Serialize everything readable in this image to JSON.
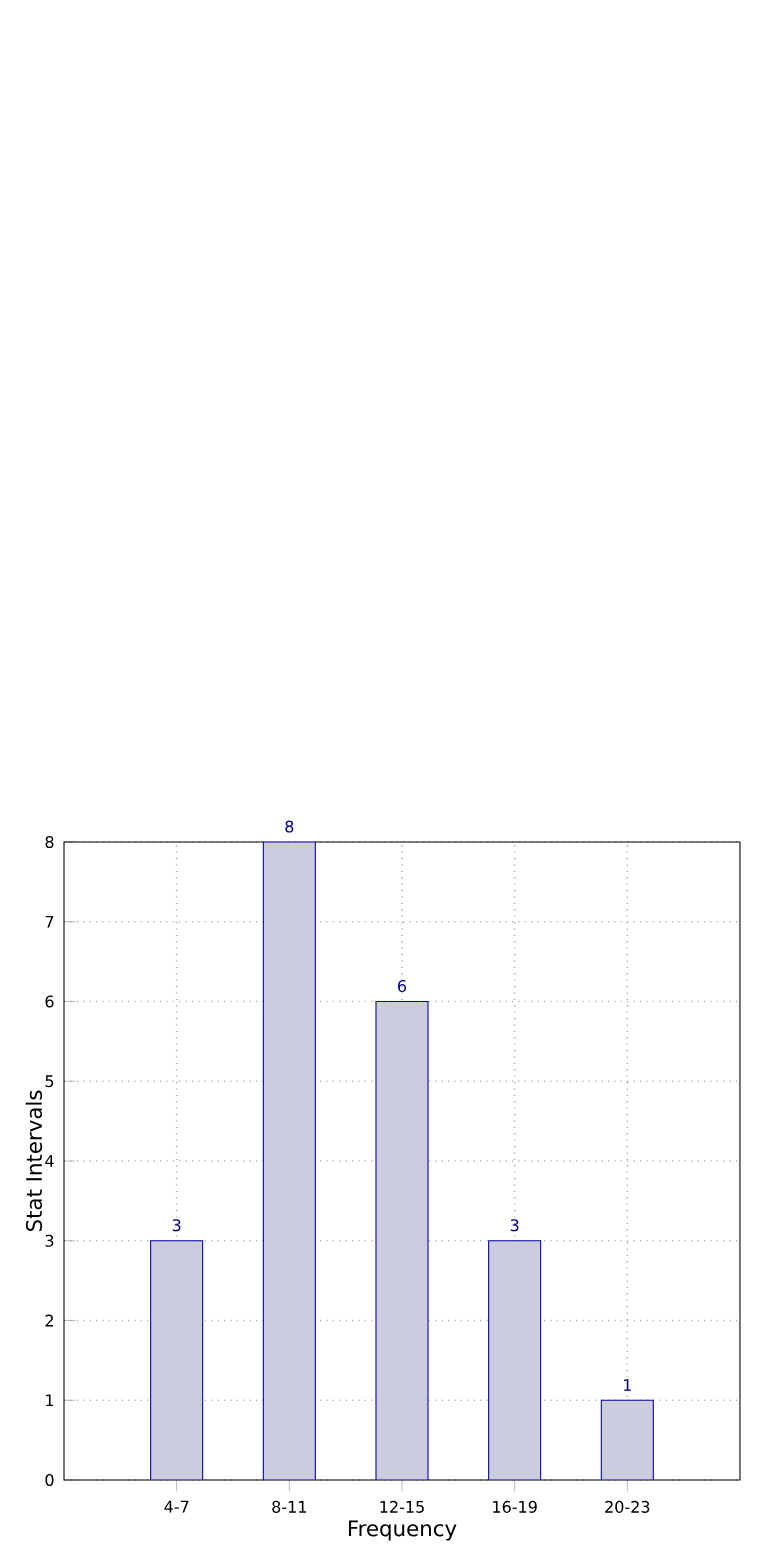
{
  "chart_data": {
    "type": "bar",
    "xlabel": "Frequency",
    "ylabel": "Stat Intervals",
    "categories": [
      "4-7",
      "8-11",
      "12-15",
      "16-19",
      "20-23"
    ],
    "values": [
      3,
      8,
      6,
      3,
      1
    ],
    "color": "#ccccdf",
    "ylim": [
      0,
      8
    ],
    "yticks": [
      0,
      1,
      2,
      3,
      4,
      5,
      6,
      7,
      8
    ],
    "grid": true,
    "data_labels": true
  }
}
